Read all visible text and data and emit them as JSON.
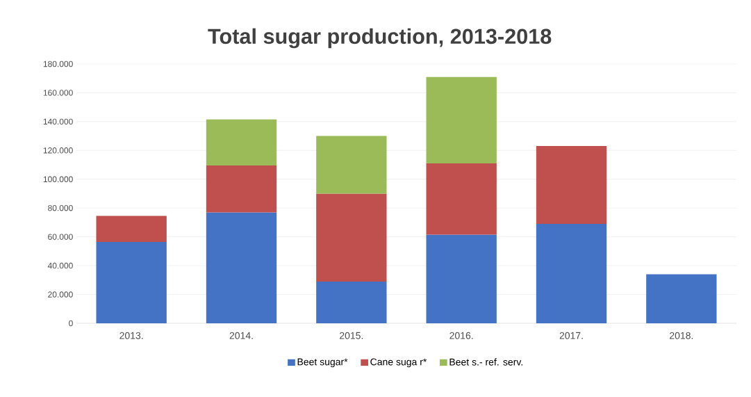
{
  "chart_data": {
    "type": "bar",
    "stacked": true,
    "title": "Total sugar production, 2013-2018",
    "categories": [
      "2013.",
      "2014.",
      "2015.",
      "2016.",
      "2017.",
      "2018."
    ],
    "series": [
      {
        "name": "Beet sugar*",
        "color": "#4472c4",
        "values": [
          56500,
          77000,
          29000,
          61500,
          69000,
          34000
        ]
      },
      {
        "name": "Cane suga r*",
        "color": "#c0504d",
        "values": [
          18000,
          32500,
          61000,
          49500,
          54000,
          null
        ]
      },
      {
        "name": "Beet s.- ref. serv.",
        "color": "#9bbb59",
        "values": [
          null,
          32000,
          40000,
          60000,
          null,
          null
        ]
      }
    ],
    "ylim": [
      0,
      180000
    ],
    "yticks": [
      {
        "value": 0,
        "label": "0"
      },
      {
        "value": 20000,
        "label": "20.000"
      },
      {
        "value": 40000,
        "label": "40.000"
      },
      {
        "value": 60000,
        "label": "60.000"
      },
      {
        "value": 80000,
        "label": "80.000"
      },
      {
        "value": 100000,
        "label": "100.000"
      },
      {
        "value": 120000,
        "label": "120.000"
      },
      {
        "value": 140000,
        "label": "140.000"
      },
      {
        "value": 160000,
        "label": "160.000"
      },
      {
        "value": 180000,
        "label": "180.000"
      }
    ],
    "grid": "y",
    "legend": "bottom"
  }
}
